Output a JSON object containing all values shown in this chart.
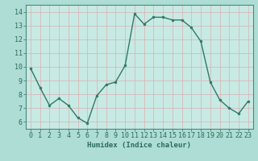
{
  "x": [
    0,
    1,
    2,
    3,
    4,
    5,
    6,
    7,
    8,
    9,
    10,
    11,
    12,
    13,
    14,
    15,
    16,
    17,
    18,
    19,
    20,
    21,
    22,
    23
  ],
  "y": [
    9.9,
    8.5,
    7.2,
    7.7,
    7.2,
    6.3,
    5.9,
    7.9,
    8.7,
    8.9,
    10.1,
    13.85,
    13.1,
    13.6,
    13.6,
    13.4,
    13.4,
    12.85,
    11.85,
    8.9,
    7.6,
    7.0,
    6.6,
    7.5
  ],
  "line_color": "#2d7a6a",
  "marker": "o",
  "marker_size": 2.0,
  "linewidth": 1.0,
  "bg_outer": "#aeddd6",
  "bg_plot": "#c8eae4",
  "grid_color": "#d8b0b0",
  "xlabel": "Humidex (Indice chaleur)",
  "xlim": [
    -0.5,
    23.5
  ],
  "ylim": [
    5.5,
    14.5
  ],
  "yticks": [
    6,
    7,
    8,
    9,
    10,
    11,
    12,
    13,
    14
  ],
  "xticks": [
    0,
    1,
    2,
    3,
    4,
    5,
    6,
    7,
    8,
    9,
    10,
    11,
    12,
    13,
    14,
    15,
    16,
    17,
    18,
    19,
    20,
    21,
    22,
    23
  ],
  "text_color": "#2d6a5a",
  "xlabel_fontsize": 6.5,
  "tick_fontsize": 6.0,
  "spine_color": "#4a8a7a"
}
